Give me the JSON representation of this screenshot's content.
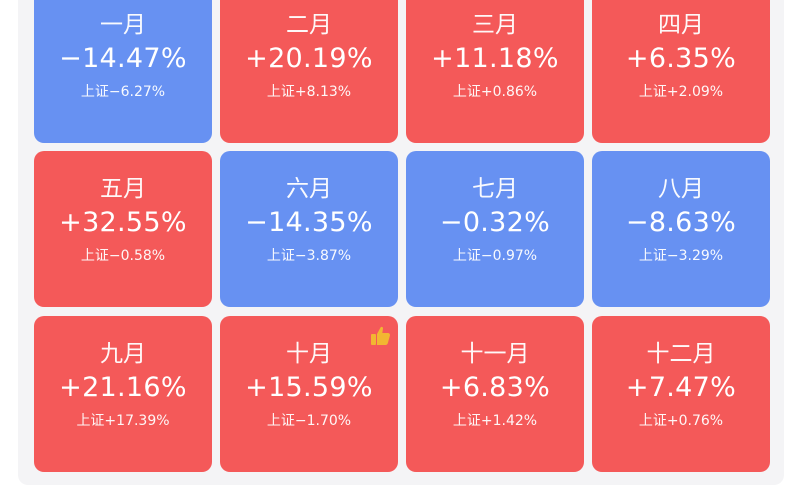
{
  "months": [
    {
      "month": "一月",
      "change": "−14.47%",
      "index": "上证−6.27%",
      "trend": "down"
    },
    {
      "month": "二月",
      "change": "+20.19%",
      "index": "上证+8.13%",
      "trend": "up"
    },
    {
      "month": "三月",
      "change": "+11.18%",
      "index": "上证+0.86%",
      "trend": "up"
    },
    {
      "month": "四月",
      "change": "+6.35%",
      "index": "上证+2.09%",
      "trend": "up"
    },
    {
      "month": "五月",
      "change": "+32.55%",
      "index": "上证−0.58%",
      "trend": "up"
    },
    {
      "month": "六月",
      "change": "−14.35%",
      "index": "上证−3.87%",
      "trend": "down"
    },
    {
      "month": "七月",
      "change": "−0.32%",
      "index": "上证−0.97%",
      "trend": "down"
    },
    {
      "month": "八月",
      "change": "−8.63%",
      "index": "上证−3.29%",
      "trend": "down"
    },
    {
      "month": "九月",
      "change": "+21.16%",
      "index": "上证+17.39%",
      "trend": "up"
    },
    {
      "month": "十月",
      "change": "+15.59%",
      "index": "上证−1.70%",
      "trend": "up",
      "badge": "thumbs-up-icon"
    },
    {
      "month": "十一月",
      "change": "+6.83%",
      "index": "上证+1.42%",
      "trend": "up"
    },
    {
      "month": "十二月",
      "change": "+7.47%",
      "index": "上证+0.76%",
      "trend": "up"
    }
  ],
  "colors": {
    "up": "#f45959",
    "down": "#6791f2",
    "text": "#ffffff",
    "background": "#f4f4f6",
    "badge": "#f2b632"
  }
}
